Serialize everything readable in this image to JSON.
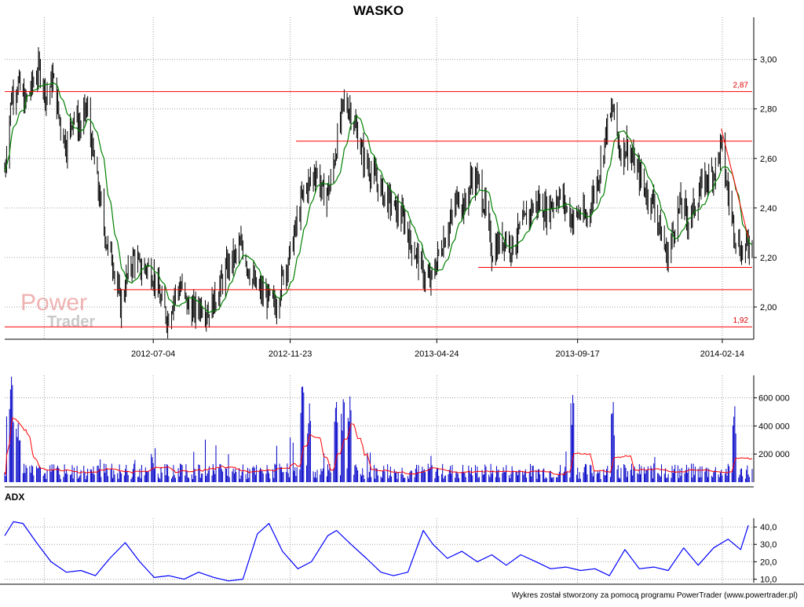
{
  "title": "WASKO",
  "watermark": {
    "line1": "Power",
    "line2": "Trader"
  },
  "credit": "Wykres został stworzony za pomocą programu PowerTrader (www.powertrader.pl)",
  "colors": {
    "bars": "#000000",
    "ma": "#008000",
    "levels": "#ff0000",
    "volume": "#0000c8",
    "volume_ma": "#ff0000",
    "adx": "#0000ff",
    "grid": "#a0a0a0"
  },
  "chart_data": [
    {
      "panel": "price",
      "type": "ohlc",
      "title": "WASKO",
      "x_tick_labels": [
        "2012-07-04",
        "2012-11-23",
        "2013-04-24",
        "2013-09-17",
        "2014-02-14"
      ],
      "y_tick_labels": [
        "2,00",
        "2,20",
        "2,40",
        "2,60",
        "2,80",
        "3,00"
      ],
      "ylim": [
        1.87,
        3.17
      ],
      "grid": true,
      "series": [
        {
          "kind": "close-path",
          "points": [
            [
              "2012-02-01",
              2.55
            ],
            [
              "2012-02-08",
              2.85
            ],
            [
              "2012-02-15",
              2.9
            ],
            [
              "2012-02-22",
              2.82
            ],
            [
              "2012-03-01",
              2.9
            ],
            [
              "2012-03-08",
              2.96
            ],
            [
              "2012-03-15",
              2.85
            ],
            [
              "2012-03-22",
              2.92
            ],
            [
              "2012-03-29",
              2.75
            ],
            [
              "2012-04-05",
              2.65
            ],
            [
              "2012-04-12",
              2.78
            ],
            [
              "2012-04-19",
              2.72
            ],
            [
              "2012-04-26",
              2.8
            ],
            [
              "2012-05-03",
              2.6
            ],
            [
              "2012-05-10",
              2.42
            ],
            [
              "2012-05-17",
              2.25
            ],
            [
              "2012-05-24",
              2.17
            ],
            [
              "2012-05-31",
              2.0
            ],
            [
              "2012-06-07",
              2.12
            ],
            [
              "2012-06-14",
              2.2
            ],
            [
              "2012-06-21",
              2.15
            ],
            [
              "2012-06-28",
              2.16
            ],
            [
              "2012-07-05",
              2.12
            ],
            [
              "2012-07-12",
              2.02
            ],
            [
              "2012-07-19",
              1.95
            ],
            [
              "2012-07-26",
              2.05
            ],
            [
              "2012-08-02",
              2.08
            ],
            [
              "2012-08-09",
              2.0
            ],
            [
              "2012-08-16",
              1.98
            ],
            [
              "2012-08-23",
              2.01
            ],
            [
              "2012-08-30",
              1.98
            ],
            [
              "2012-09-06",
              2.03
            ],
            [
              "2012-09-13",
              2.1
            ],
            [
              "2012-09-20",
              2.17
            ],
            [
              "2012-09-27",
              2.2
            ],
            [
              "2012-10-04",
              2.25
            ],
            [
              "2012-10-11",
              2.15
            ],
            [
              "2012-10-18",
              2.08
            ],
            [
              "2012-10-25",
              2.05
            ],
            [
              "2012-11-01",
              2.03
            ],
            [
              "2012-11-08",
              2.0
            ],
            [
              "2012-11-15",
              2.12
            ],
            [
              "2012-11-22",
              2.2
            ],
            [
              "2012-11-29",
              2.32
            ],
            [
              "2012-12-06",
              2.45
            ],
            [
              "2012-12-13",
              2.5
            ],
            [
              "2012-12-20",
              2.55
            ],
            [
              "2012-12-27",
              2.45
            ],
            [
              "2013-01-03",
              2.48
            ],
            [
              "2013-01-10",
              2.65
            ],
            [
              "2013-01-17",
              2.82
            ],
            [
              "2013-01-24",
              2.8
            ],
            [
              "2013-01-31",
              2.7
            ],
            [
              "2013-02-07",
              2.6
            ],
            [
              "2013-02-14",
              2.55
            ],
            [
              "2013-02-21",
              2.5
            ],
            [
              "2013-02-28",
              2.45
            ],
            [
              "2013-03-07",
              2.42
            ],
            [
              "2013-03-14",
              2.38
            ],
            [
              "2013-03-21",
              2.35
            ],
            [
              "2013-03-28",
              2.25
            ],
            [
              "2013-04-04",
              2.2
            ],
            [
              "2013-04-11",
              2.12
            ],
            [
              "2013-04-18",
              2.1
            ],
            [
              "2013-04-25",
              2.2
            ],
            [
              "2013-05-02",
              2.28
            ],
            [
              "2013-05-09",
              2.35
            ],
            [
              "2013-05-16",
              2.45
            ],
            [
              "2013-05-23",
              2.4
            ],
            [
              "2013-05-30",
              2.52
            ],
            [
              "2013-06-06",
              2.5
            ],
            [
              "2013-06-13",
              2.4
            ],
            [
              "2013-06-20",
              2.22
            ],
            [
              "2013-06-27",
              2.25
            ],
            [
              "2013-07-04",
              2.28
            ],
            [
              "2013-07-11",
              2.24
            ],
            [
              "2013-07-18",
              2.3
            ],
            [
              "2013-07-25",
              2.35
            ],
            [
              "2013-08-01",
              2.4
            ],
            [
              "2013-08-08",
              2.42
            ],
            [
              "2013-08-15",
              2.38
            ],
            [
              "2013-08-22",
              2.42
            ],
            [
              "2013-08-29",
              2.45
            ],
            [
              "2013-09-05",
              2.4
            ],
            [
              "2013-09-12",
              2.35
            ],
            [
              "2013-09-19",
              2.38
            ],
            [
              "2013-09-26",
              2.35
            ],
            [
              "2013-10-03",
              2.45
            ],
            [
              "2013-10-10",
              2.55
            ],
            [
              "2013-10-17",
              2.72
            ],
            [
              "2013-10-24",
              2.8
            ],
            [
              "2013-10-31",
              2.62
            ],
            [
              "2013-11-07",
              2.65
            ],
            [
              "2013-11-14",
              2.58
            ],
            [
              "2013-11-21",
              2.52
            ],
            [
              "2013-11-28",
              2.45
            ],
            [
              "2013-12-05",
              2.42
            ],
            [
              "2013-12-12",
              2.3
            ],
            [
              "2013-12-19",
              2.2
            ],
            [
              "2013-12-26",
              2.32
            ],
            [
              "2014-01-02",
              2.42
            ],
            [
              "2014-01-09",
              2.35
            ],
            [
              "2014-01-16",
              2.4
            ],
            [
              "2014-01-23",
              2.48
            ],
            [
              "2014-01-30",
              2.52
            ],
            [
              "2014-02-06",
              2.55
            ],
            [
              "2014-02-13",
              2.65
            ],
            [
              "2014-02-20",
              2.45
            ],
            [
              "2014-02-27",
              2.3
            ],
            [
              "2014-03-06",
              2.22
            ],
            [
              "2014-03-13",
              2.25
            ]
          ]
        },
        {
          "kind": "bar-range",
          "values": [
            0.06,
            0.08,
            0.12,
            0.05,
            0.1,
            0.07,
            0.14,
            0.06,
            0.09,
            0.11,
            0.05,
            0.08,
            0.13,
            0.06,
            0.1,
            0.07,
            0.04,
            0.09,
            0.12,
            0.06
          ]
        }
      ],
      "levels": [
        {
          "value": 2.87,
          "label": "2,87"
        },
        {
          "value": 1.92,
          "label": "1,92"
        },
        {
          "value": 2.67,
          "from": "2012-11-29"
        },
        {
          "value": 2.07,
          "from": "2012-05-24"
        }
      ],
      "support_line": {
        "from": [
          "2013-06-06",
          2.16
        ],
        "to": [
          "2014-03-13",
          2.16
        ]
      },
      "resistance_trend": {
        "from": [
          "2014-02-13",
          2.72
        ],
        "to": [
          "2014-03-13",
          2.28
        ]
      }
    },
    {
      "panel": "volume",
      "type": "bar",
      "y_tick_labels": [
        "200 000",
        "400 000",
        "600 000"
      ],
      "ylim": [
        0,
        760000
      ],
      "grid": true,
      "spikes": [
        [
          "2012-02-08",
          750000
        ],
        [
          "2012-02-05",
          520000
        ],
        [
          "2012-02-15",
          420000
        ],
        [
          "2012-07-02",
          200000
        ],
        [
          "2012-12-06",
          680000
        ],
        [
          "2012-12-13",
          560000
        ],
        [
          "2013-01-10",
          570000
        ],
        [
          "2013-01-17",
          590000
        ],
        [
          "2013-01-24",
          610000
        ],
        [
          "2013-09-12",
          620000
        ],
        [
          "2013-10-24",
          570000
        ],
        [
          "2014-02-27",
          540000
        ]
      ],
      "base_level": 70000,
      "moving_average": "red line following volume"
    },
    {
      "panel": "adx",
      "type": "line",
      "title": "ADX",
      "y_tick_labels": [
        "10,0",
        "20,0",
        "30,0",
        "40,0"
      ],
      "ylim": [
        8,
        45
      ],
      "grid": true,
      "series": [
        {
          "name": "ADX",
          "points": [
            [
              "2012-02-01",
              35
            ],
            [
              "2012-02-10",
              43
            ],
            [
              "2012-02-20",
              42
            ],
            [
              "2012-03-05",
              31
            ],
            [
              "2012-03-20",
              20
            ],
            [
              "2012-04-05",
              14
            ],
            [
              "2012-04-20",
              15
            ],
            [
              "2012-05-05",
              12
            ],
            [
              "2012-05-20",
              22
            ],
            [
              "2012-06-05",
              31
            ],
            [
              "2012-06-20",
              20
            ],
            [
              "2012-07-05",
              11
            ],
            [
              "2012-07-20",
              12
            ],
            [
              "2012-08-05",
              10
            ],
            [
              "2012-08-20",
              14
            ],
            [
              "2012-09-05",
              11
            ],
            [
              "2012-09-20",
              9
            ],
            [
              "2012-10-05",
              10
            ],
            [
              "2012-10-20",
              36
            ],
            [
              "2012-11-01",
              42
            ],
            [
              "2012-11-15",
              26
            ],
            [
              "2012-12-01",
              16
            ],
            [
              "2012-12-15",
              20
            ],
            [
              "2013-01-01",
              35
            ],
            [
              "2013-01-10",
              38
            ],
            [
              "2013-01-25",
              30
            ],
            [
              "2013-02-10",
              22
            ],
            [
              "2013-02-25",
              14
            ],
            [
              "2013-03-10",
              12
            ],
            [
              "2013-03-25",
              14
            ],
            [
              "2013-04-10",
              38
            ],
            [
              "2013-04-20",
              30
            ],
            [
              "2013-05-05",
              22
            ],
            [
              "2013-05-20",
              26
            ],
            [
              "2013-06-05",
              20
            ],
            [
              "2013-06-20",
              24
            ],
            [
              "2013-07-05",
              18
            ],
            [
              "2013-07-20",
              24
            ],
            [
              "2013-08-05",
              20
            ],
            [
              "2013-08-20",
              16
            ],
            [
              "2013-09-05",
              17
            ],
            [
              "2013-09-20",
              15
            ],
            [
              "2013-10-05",
              16
            ],
            [
              "2013-10-20",
              12
            ],
            [
              "2013-11-05",
              27
            ],
            [
              "2013-11-20",
              16
            ],
            [
              "2013-12-05",
              17
            ],
            [
              "2013-12-20",
              15
            ],
            [
              "2014-01-05",
              28
            ],
            [
              "2014-01-20",
              18
            ],
            [
              "2014-02-05",
              28
            ],
            [
              "2014-02-20",
              33
            ],
            [
              "2014-03-05",
              27
            ],
            [
              "2014-03-13",
              41
            ]
          ]
        }
      ]
    }
  ]
}
